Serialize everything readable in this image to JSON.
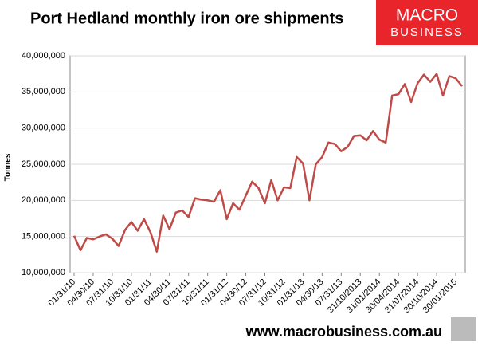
{
  "chart_data": {
    "type": "line",
    "title": "Port Hedland monthly iron ore shipments",
    "y_label": "Tonnes",
    "logo": [
      "MACRO",
      "BUSINESS"
    ],
    "footer": "www.macrobusiness.com.au",
    "categories": [
      "01/31/10",
      null,
      null,
      "04/30/10",
      null,
      null,
      "07/31/10",
      null,
      null,
      "10/31/10",
      null,
      null,
      "01/31/11",
      null,
      null,
      "04/30/11",
      null,
      null,
      "07/31/11",
      null,
      null,
      "10/31/11",
      null,
      null,
      "01/31/12",
      null,
      null,
      "04/30/12",
      null,
      null,
      "07/31/12",
      null,
      null,
      "10/31/12",
      null,
      null,
      "01/31/13",
      null,
      null,
      "04/30/13",
      null,
      null,
      "07/31/13",
      null,
      null,
      "31/10/2013",
      null,
      null,
      "31/01/2014",
      null,
      null,
      "30/04/2014",
      null,
      null,
      "31/07/2014",
      null,
      null,
      "30/10/2014",
      null,
      null,
      "30/01/2015",
      null
    ],
    "values": [
      15100000,
      13100000,
      14800000,
      14600000,
      15000000,
      15300000,
      14700000,
      13700000,
      15900000,
      17000000,
      15800000,
      17400000,
      15600000,
      12900000,
      17900000,
      16000000,
      18300000,
      18600000,
      17700000,
      20300000,
      20100000,
      20000000,
      19800000,
      21400000,
      17400000,
      19600000,
      18700000,
      20700000,
      22600000,
      21700000,
      19600000,
      22800000,
      20000000,
      21800000,
      21700000,
      26000000,
      25100000,
      20000000,
      25000000,
      26000000,
      28000000,
      27800000,
      26800000,
      27400000,
      28900000,
      29000000,
      28300000,
      29600000,
      28400000,
      28000000,
      34500000,
      34700000,
      36100000,
      33600000,
      36200000,
      37400000,
      36400000,
      37500000,
      34500000,
      37200000,
      36900000,
      35800000
    ],
    "color": "#be4b48",
    "ylim": [
      10000000,
      40000000
    ],
    "yticks": [
      {
        "value": 10000000,
        "label": "10,000,000"
      },
      {
        "value": 15000000,
        "label": "15,000,000"
      },
      {
        "value": 20000000,
        "label": "20,000,000"
      },
      {
        "value": 25000000,
        "label": "25,000,000"
      },
      {
        "value": 30000000,
        "label": "30,000,000"
      },
      {
        "value": 35000000,
        "label": "35,000,000"
      },
      {
        "value": 40000000,
        "label": "40,000,000"
      }
    ],
    "grid": true
  }
}
